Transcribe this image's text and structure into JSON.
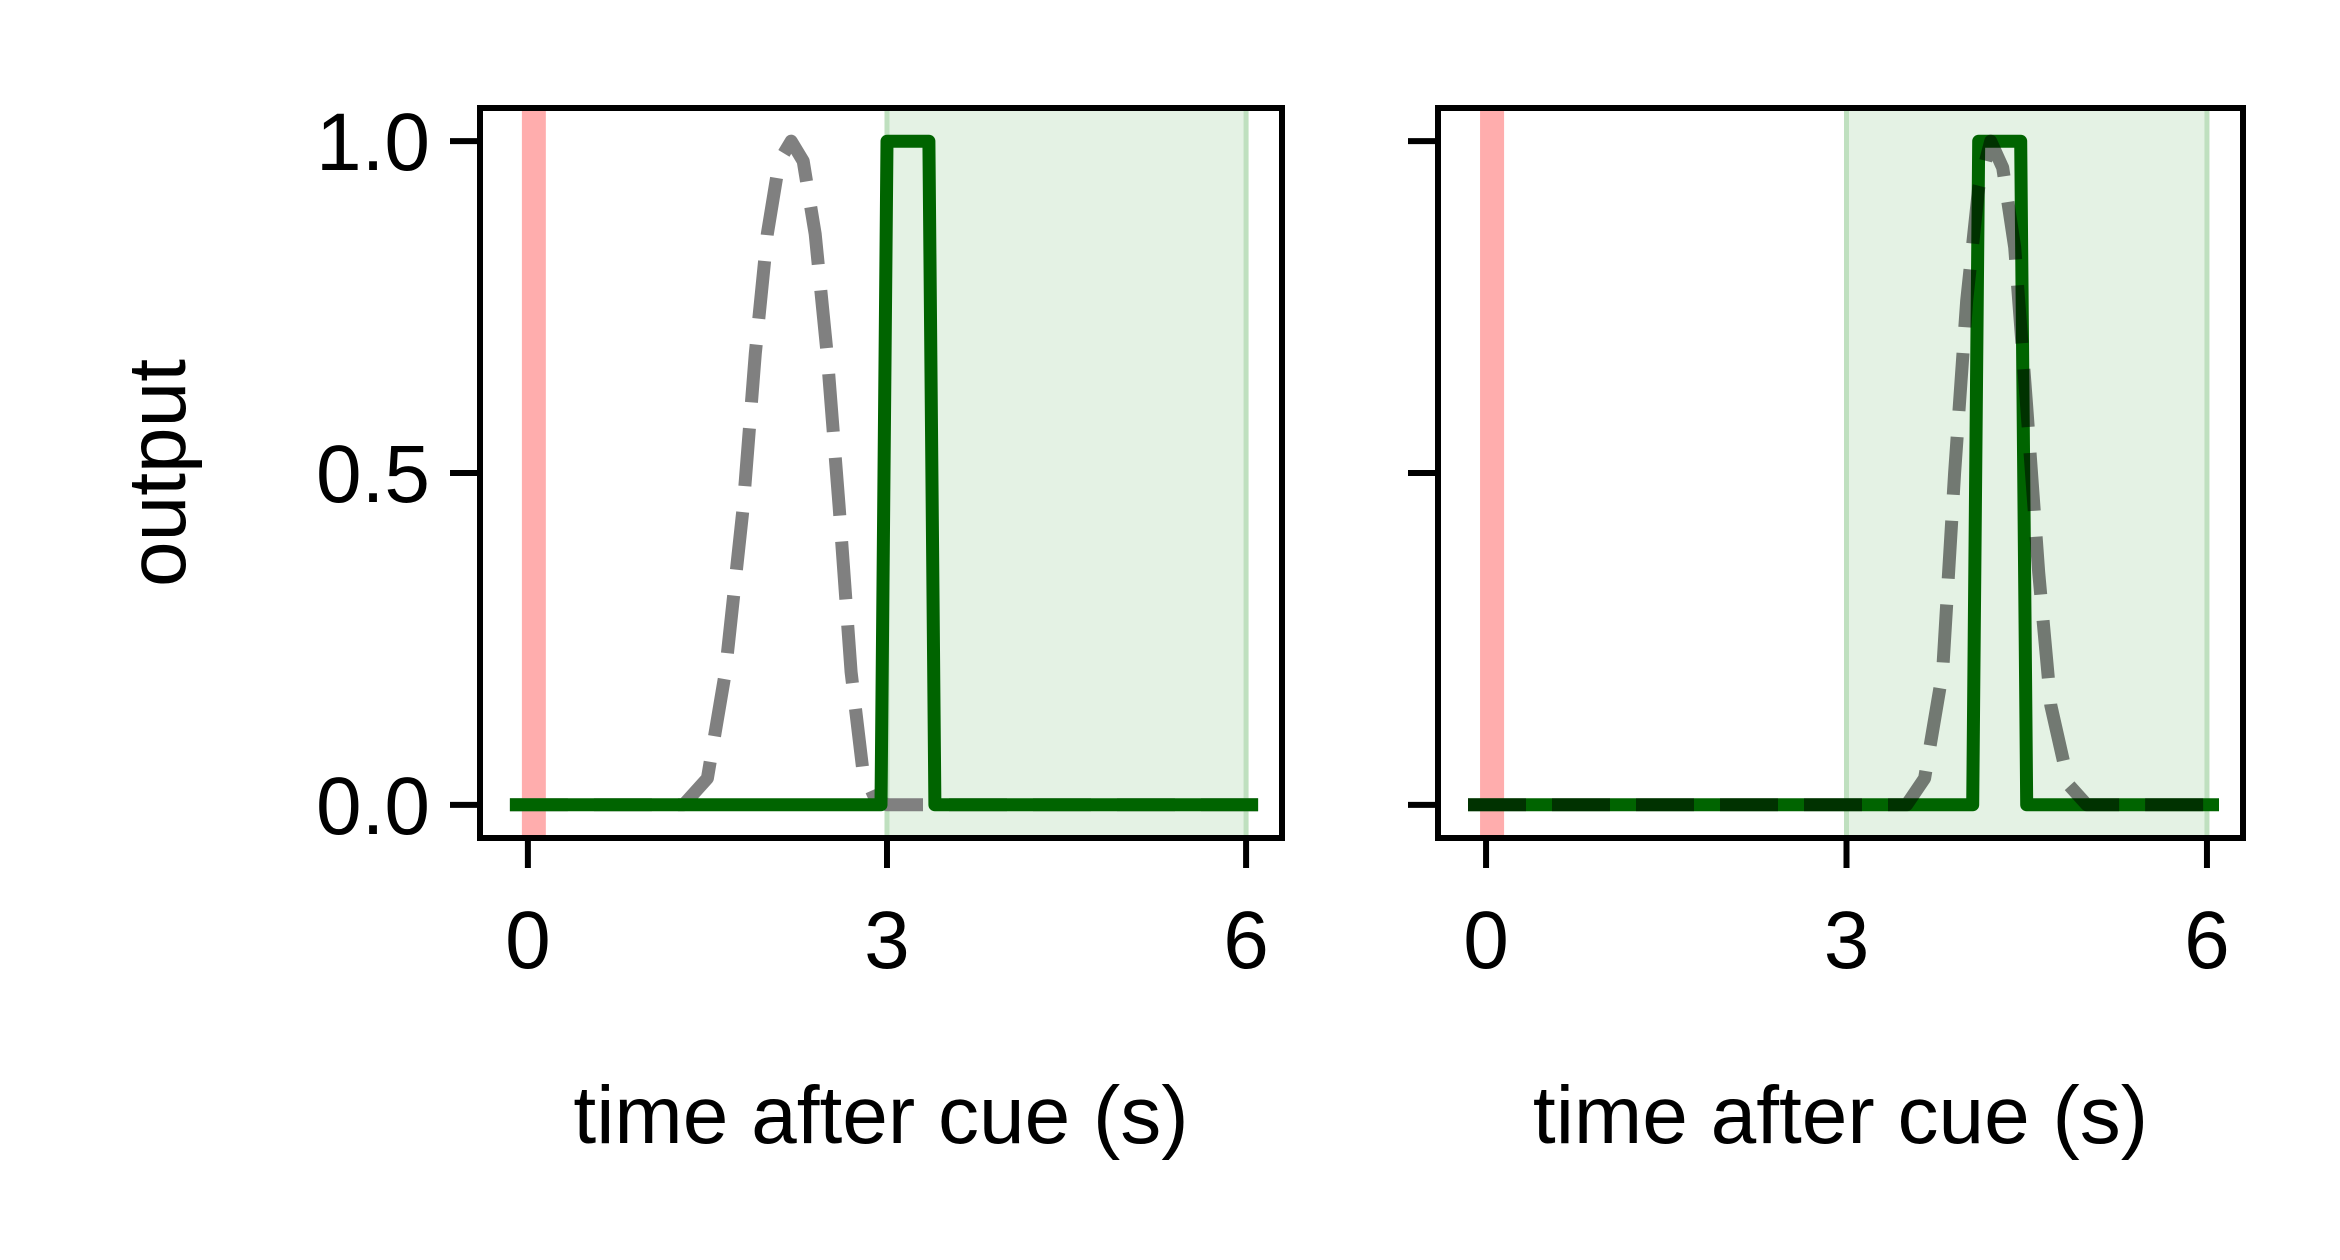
{
  "chart_data": [
    {
      "type": "line",
      "panel": "left",
      "title": "",
      "xlabel": "time after cue (s)",
      "ylabel": "output",
      "xlim": [
        -0.4,
        6.3
      ],
      "ylim": [
        -0.05,
        1.05
      ],
      "xticks": [
        0,
        3,
        6
      ],
      "xtick_labels": [
        "0",
        "3",
        "6"
      ],
      "yticks": [
        0.0,
        0.5,
        1.0
      ],
      "ytick_labels": [
        "0.0",
        "0.5",
        "1.0"
      ],
      "grid": false,
      "cue_marker": {
        "x0": -0.05,
        "x1": 0.15,
        "color": "#ff9999"
      },
      "response_window": {
        "x0": 3.0,
        "x1": 6.0,
        "color": "#d9ecd9"
      },
      "series": [
        {
          "style": "dashed",
          "color": "#808080",
          "x": [
            -0.15,
            1.3,
            1.5,
            1.65,
            1.8,
            1.9,
            2.0,
            2.1,
            2.2,
            2.3,
            2.4,
            2.5,
            2.6,
            2.7,
            2.8,
            2.9,
            3.0,
            6.1
          ],
          "y": [
            0.0,
            0.0,
            0.04,
            0.2,
            0.45,
            0.68,
            0.86,
            0.97,
            1.0,
            0.97,
            0.86,
            0.68,
            0.45,
            0.2,
            0.05,
            0.01,
            0.0,
            0.0
          ]
        },
        {
          "style": "solid",
          "color": "#006400",
          "x": [
            -0.15,
            2.95,
            3.0,
            3.35,
            3.4,
            6.1
          ],
          "y": [
            0.0,
            0.0,
            1.0,
            1.0,
            0.0,
            0.0
          ]
        }
      ]
    },
    {
      "type": "line",
      "panel": "right",
      "title": "",
      "xlabel": "time after cue (s)",
      "ylabel": "",
      "xlim": [
        -0.4,
        6.3
      ],
      "ylim": [
        -0.05,
        1.05
      ],
      "xticks": [
        0,
        3,
        6
      ],
      "xtick_labels": [
        "0",
        "3",
        "6"
      ],
      "yticks": [
        0.0,
        0.5,
        1.0
      ],
      "ytick_labels": [],
      "grid": false,
      "cue_marker": {
        "x0": -0.05,
        "x1": 0.15,
        "color": "#ff9999"
      },
      "response_window": {
        "x0": 3.0,
        "x1": 6.0,
        "color": "#d9ecd9"
      },
      "series": [
        {
          "style": "solid",
          "color": "#006400",
          "x": [
            -0.15,
            4.05,
            4.1,
            4.45,
            4.5,
            6.1
          ],
          "y": [
            0.0,
            0.0,
            1.0,
            1.0,
            0.0,
            0.0
          ]
        },
        {
          "style": "dashed",
          "color": "#000000",
          "opacity": 0.5,
          "x": [
            -0.15,
            3.5,
            3.65,
            3.8,
            3.9,
            4.0,
            4.1,
            4.2,
            4.3,
            4.4,
            4.5,
            4.6,
            4.7,
            4.85,
            5.0,
            6.1
          ],
          "y": [
            0.0,
            0.0,
            0.04,
            0.2,
            0.5,
            0.76,
            0.93,
            1.0,
            0.96,
            0.84,
            0.6,
            0.35,
            0.15,
            0.03,
            0.0,
            0.0
          ]
        }
      ]
    }
  ]
}
